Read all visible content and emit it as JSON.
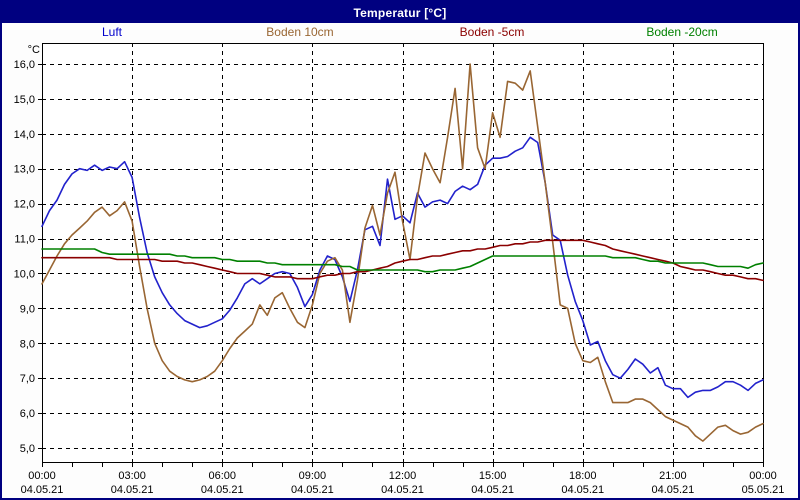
{
  "window": {
    "title": "Temperatur [°C]"
  },
  "legend": [
    {
      "label": "Luft",
      "color": "#0000cc"
    },
    {
      "label": "Boden 10cm",
      "color": "#996633"
    },
    {
      "label": "Boden -5cm",
      "color": "#8b0000"
    },
    {
      "label": "Boden -20cm",
      "color": "#008000"
    }
  ],
  "colors": {
    "titlebar": "#000080",
    "frame": "#000080",
    "plot_border": "#000000",
    "grid": "#000000",
    "plot_background": "#ffffff"
  },
  "chart_data": {
    "type": "line",
    "title": "Temperatur [°C]",
    "ylabel": "°C",
    "grid": "dashed",
    "legend_position": "top",
    "ylim": [
      4.6,
      16.6
    ],
    "xlim_hours": [
      0,
      24
    ],
    "x_start_hour": 0,
    "x_step_hours": 0.25,
    "x_minor_tick_hours": 1,
    "y_ticks": [
      {
        "label": "16,0",
        "value": 16
      },
      {
        "label": "15,0",
        "value": 15
      },
      {
        "label": "14,0",
        "value": 14
      },
      {
        "label": "13,0",
        "value": 13
      },
      {
        "label": "12,0",
        "value": 12
      },
      {
        "label": "11,0",
        "value": 11
      },
      {
        "label": "10,0",
        "value": 10
      },
      {
        "label": "9,0",
        "value": 9
      },
      {
        "label": "8,0",
        "value": 8
      },
      {
        "label": "7,0",
        "value": 7
      },
      {
        "label": "6,0",
        "value": 6
      },
      {
        "label": "5,0",
        "value": 5
      }
    ],
    "x_ticks": [
      {
        "hour": 0,
        "time": "00:00",
        "date": "04.05.21"
      },
      {
        "hour": 3,
        "time": "03:00",
        "date": "04.05.21"
      },
      {
        "hour": 6,
        "time": "06:00",
        "date": "04.05.21"
      },
      {
        "hour": 9,
        "time": "09:00",
        "date": "04.05.21"
      },
      {
        "hour": 12,
        "time": "12:00",
        "date": "04.05.21"
      },
      {
        "hour": 15,
        "time": "15:00",
        "date": "04.05.21"
      },
      {
        "hour": 18,
        "time": "18:00",
        "date": "04.05.21"
      },
      {
        "hour": 21,
        "time": "21:00",
        "date": "04.05.21"
      },
      {
        "hour": 24,
        "time": "00:00",
        "date": "05.05.21"
      }
    ],
    "series": [
      {
        "name": "Luft",
        "color": "#2222cc",
        "values": [
          11.35,
          11.8,
          12.1,
          12.55,
          12.85,
          13,
          12.95,
          13.1,
          12.95,
          13.05,
          13,
          13.2,
          12.75,
          11.6,
          10.6,
          9.9,
          9.45,
          9.1,
          8.85,
          8.65,
          8.55,
          8.45,
          8.5,
          8.6,
          8.7,
          8.95,
          9.3,
          9.7,
          9.85,
          9.7,
          9.85,
          10,
          10.05,
          10,
          9.6,
          9.05,
          9.4,
          10.1,
          10.5,
          10.4,
          9.9,
          9.2,
          10.1,
          11.25,
          11.35,
          10.8,
          12.7,
          11.55,
          11.65,
          11.45,
          12.3,
          11.9,
          12.05,
          12.1,
          12,
          12.35,
          12.5,
          12.4,
          12.55,
          13.1,
          13.3,
          13.3,
          13.35,
          13.5,
          13.6,
          13.9,
          13.75,
          12.6,
          11.1,
          10.95,
          9.95,
          9.2,
          8.65,
          7.95,
          8.05,
          7.5,
          7.1,
          7,
          7.25,
          7.55,
          7.4,
          7.15,
          7.3,
          6.8,
          6.7,
          6.7,
          6.45,
          6.6,
          6.65,
          6.65,
          6.75,
          6.9,
          6.9,
          6.8,
          6.65,
          6.85,
          6.95
        ]
      },
      {
        "name": "Boden 10cm",
        "color": "#996633",
        "values": [
          9.7,
          10.1,
          10.5,
          10.85,
          11.1,
          11.3,
          11.5,
          11.75,
          11.9,
          11.65,
          11.8,
          12.05,
          11.5,
          10.2,
          9,
          8,
          7.5,
          7.2,
          7.05,
          6.95,
          6.9,
          6.95,
          7.05,
          7.2,
          7.5,
          7.85,
          8.15,
          8.35,
          8.55,
          9.1,
          8.8,
          9.3,
          9.45,
          9,
          8.6,
          8.45,
          9.1,
          10,
          10.35,
          10.45,
          10.1,
          8.6,
          9.8,
          11.3,
          11.95,
          11.1,
          12.3,
          12.9,
          11.5,
          10.4,
          12.2,
          13.45,
          13,
          12.6,
          13.9,
          15.3,
          13,
          16,
          13.6,
          13,
          14.6,
          13.9,
          15.5,
          15.45,
          15.25,
          15.8,
          14.2,
          12.6,
          10.9,
          9.1,
          9,
          8,
          7.5,
          7.45,
          7.6,
          6.9,
          6.3,
          6.3,
          6.3,
          6.4,
          6.4,
          6.3,
          6.1,
          5.9,
          5.8,
          5.7,
          5.6,
          5.35,
          5.2,
          5.4,
          5.6,
          5.65,
          5.5,
          5.4,
          5.45,
          5.6,
          5.7
        ]
      },
      {
        "name": "Boden -5cm",
        "color": "#8b0000",
        "values": [
          10.45,
          10.45,
          10.45,
          10.45,
          10.45,
          10.45,
          10.45,
          10.45,
          10.45,
          10.45,
          10.4,
          10.4,
          10.4,
          10.4,
          10.4,
          10.4,
          10.35,
          10.35,
          10.35,
          10.3,
          10.3,
          10.25,
          10.2,
          10.15,
          10.1,
          10.05,
          10,
          10,
          10,
          10,
          9.95,
          9.9,
          9.9,
          9.9,
          9.85,
          9.85,
          9.85,
          9.9,
          9.95,
          9.95,
          10,
          10,
          10.05,
          10.05,
          10.1,
          10.15,
          10.2,
          10.3,
          10.35,
          10.4,
          10.4,
          10.45,
          10.5,
          10.5,
          10.55,
          10.6,
          10.65,
          10.65,
          10.7,
          10.7,
          10.75,
          10.8,
          10.8,
          10.85,
          10.85,
          10.9,
          10.9,
          10.95,
          10.95,
          10.95,
          10.95,
          10.95,
          10.95,
          10.9,
          10.85,
          10.8,
          10.7,
          10.65,
          10.6,
          10.55,
          10.5,
          10.45,
          10.4,
          10.35,
          10.3,
          10.2,
          10.15,
          10.1,
          10.1,
          10.05,
          10,
          9.95,
          9.95,
          9.9,
          9.85,
          9.85,
          9.8
        ]
      },
      {
        "name": "Boden -20cm",
        "color": "#008000",
        "values": [
          10.7,
          10.7,
          10.7,
          10.7,
          10.7,
          10.7,
          10.7,
          10.7,
          10.6,
          10.55,
          10.55,
          10.55,
          10.55,
          10.55,
          10.55,
          10.55,
          10.55,
          10.55,
          10.5,
          10.5,
          10.45,
          10.45,
          10.45,
          10.45,
          10.4,
          10.4,
          10.35,
          10.35,
          10.35,
          10.35,
          10.3,
          10.3,
          10.25,
          10.25,
          10.25,
          10.25,
          10.25,
          10.25,
          10.25,
          10.25,
          10.2,
          10.2,
          10.1,
          10.1,
          10.1,
          10.1,
          10.1,
          10.1,
          10.1,
          10.1,
          10.1,
          10.05,
          10.05,
          10.1,
          10.1,
          10.1,
          10.15,
          10.2,
          10.3,
          10.4,
          10.5,
          10.5,
          10.5,
          10.5,
          10.5,
          10.5,
          10.5,
          10.5,
          10.5,
          10.5,
          10.5,
          10.5,
          10.5,
          10.5,
          10.5,
          10.5,
          10.45,
          10.45,
          10.45,
          10.45,
          10.4,
          10.35,
          10.35,
          10.3,
          10.3,
          10.3,
          10.3,
          10.3,
          10.3,
          10.25,
          10.2,
          10.2,
          10.2,
          10.2,
          10.15,
          10.25,
          10.3
        ]
      }
    ]
  }
}
